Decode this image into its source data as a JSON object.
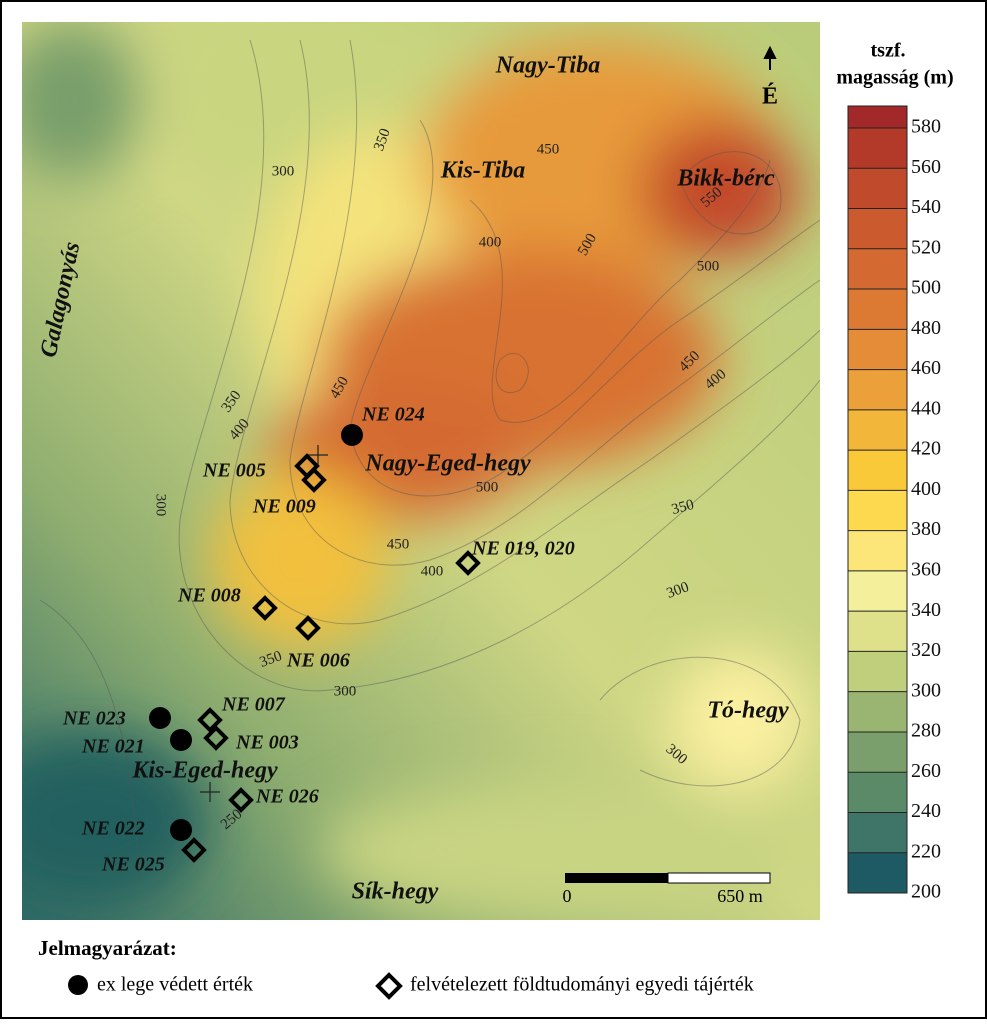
{
  "map": {
    "place_labels": [
      "Nagy-Tiba",
      "Kis-Tiba",
      "Bikk-bérc",
      "Galagonyás",
      "Nagy-Eged-hegy",
      "Tó-hegy",
      "Kis-Eged-hegy",
      "Sík-hegy"
    ],
    "contour_labels": [
      "300",
      "350",
      "450",
      "400",
      "500",
      "550",
      "500",
      "450",
      "400",
      "450",
      "350",
      "400",
      "300",
      "500",
      "450",
      "400",
      "350",
      "300",
      "350",
      "300",
      "300",
      "250"
    ],
    "sites": [
      {
        "label": "NE 024",
        "kind": "protected"
      },
      {
        "label": "NE 023",
        "kind": "protected"
      },
      {
        "label": "NE 021",
        "kind": "protected"
      },
      {
        "label": "NE 022",
        "kind": "protected"
      },
      {
        "label": "NE 005",
        "kind": "surveyed"
      },
      {
        "label": "NE 009",
        "kind": "surveyed"
      },
      {
        "label": "NE 019, 020",
        "kind": "surveyed"
      },
      {
        "label": "NE 008",
        "kind": "surveyed"
      },
      {
        "label": "NE 006",
        "kind": "surveyed"
      },
      {
        "label": "NE 007",
        "kind": "surveyed"
      },
      {
        "label": "NE 003",
        "kind": "surveyed"
      },
      {
        "label": "NE 026",
        "kind": "surveyed"
      },
      {
        "label": "NE 025",
        "kind": "surveyed"
      }
    ],
    "north_label": "É",
    "scale_bar": {
      "start": "0",
      "end": "650 m"
    }
  },
  "colorbar": {
    "title": [
      "tszf.",
      "magasság (m)"
    ],
    "ticks": [
      200,
      220,
      240,
      260,
      280,
      300,
      320,
      340,
      360,
      380,
      400,
      420,
      440,
      460,
      480,
      500,
      520,
      540,
      560,
      580
    ],
    "colors": [
      "#1e5a63",
      "#3f7468",
      "#5b8a68",
      "#7a9e6c",
      "#9ab572",
      "#bfcf7c",
      "#dfe08a",
      "#f3ef9a",
      "#fce67a",
      "#fdd94f",
      "#f9c93a",
      "#f2b63a",
      "#eba03a",
      "#e48c38",
      "#dc7a34",
      "#d46a31",
      "#cb5a2f",
      "#c04a2c",
      "#b33a29",
      "#a3282a"
    ]
  },
  "legend": {
    "title": "Jelmagyarázat:",
    "items": [
      {
        "label": "ex lege védett érték"
      },
      {
        "label": "felvételezett földtudományi egyedi tájérték"
      }
    ]
  }
}
